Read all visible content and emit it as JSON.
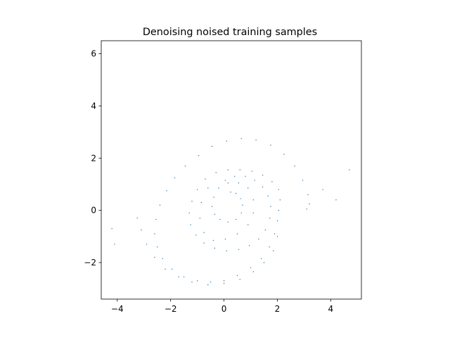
{
  "chart_data": {
    "type": "scatter",
    "title": "Denoising noised training samples",
    "xlabel": "",
    "ylabel": "",
    "xlim": [
      -4.6,
      5.15
    ],
    "ylim": [
      -3.4,
      6.5
    ],
    "x_ticks": [
      -4,
      -2,
      0,
      2,
      4
    ],
    "y_ticks": [
      -2,
      0,
      2,
      4,
      6
    ],
    "x_tick_labels": [
      "−4",
      "−2",
      "0",
      "2",
      "4"
    ],
    "y_tick_labels": [
      "−2",
      "0",
      "2",
      "4",
      "6"
    ],
    "grid": false,
    "marker_color": "#1f77b4",
    "series": [
      {
        "points": [
          [
            0.25,
            0.7
          ],
          [
            0.45,
            0.65
          ],
          [
            0.62,
            0.45
          ],
          [
            0.7,
            0.2
          ],
          [
            0.65,
            -0.1
          ],
          [
            0.45,
            -0.35
          ],
          [
            0.15,
            -0.45
          ],
          [
            -0.15,
            -0.35
          ],
          [
            -0.35,
            -0.15
          ],
          [
            -0.45,
            0.15
          ],
          [
            -0.38,
            0.5
          ],
          [
            -0.2,
            0.85
          ],
          [
            0.05,
            1.15
          ],
          [
            0.4,
            1.3
          ],
          [
            0.8,
            1.3
          ],
          [
            1.15,
            1.15
          ],
          [
            1.45,
            0.9
          ],
          [
            1.65,
            0.55
          ],
          [
            1.75,
            0.15
          ],
          [
            1.72,
            -0.3
          ],
          [
            1.55,
            -0.75
          ],
          [
            1.3,
            -1.1
          ],
          [
            0.95,
            -1.35
          ],
          [
            0.55,
            -1.5
          ],
          [
            0.1,
            -1.55
          ],
          [
            -0.35,
            -1.45
          ],
          [
            -0.75,
            -1.25
          ],
          [
            -1.05,
            -0.95
          ],
          [
            -1.25,
            -0.55
          ],
          [
            -1.3,
            -0.1
          ],
          [
            -1.2,
            0.35
          ],
          [
            -1.0,
            0.8
          ],
          [
            -0.7,
            1.2
          ],
          [
            -0.3,
            1.45
          ],
          [
            0.15,
            1.55
          ],
          [
            0.6,
            1.55
          ],
          [
            1.05,
            1.5
          ],
          [
            1.45,
            1.35
          ],
          [
            1.8,
            1.1
          ],
          [
            2.05,
            0.8
          ],
          [
            2.1,
            0.4
          ],
          [
            2.05,
            0.0
          ],
          [
            2.0,
            -0.4
          ],
          [
            1.9,
            -0.9
          ],
          [
            1.7,
            -1.4
          ],
          [
            1.4,
            -1.85
          ],
          [
            1.0,
            -2.2
          ],
          [
            0.5,
            -2.5
          ],
          [
            0.0,
            -2.7
          ],
          [
            -0.5,
            -2.75
          ],
          [
            -1.0,
            -2.7
          ],
          [
            -1.5,
            -2.55
          ],
          [
            -1.95,
            -2.25
          ],
          [
            -2.3,
            -1.85
          ],
          [
            -2.5,
            -1.4
          ],
          [
            -2.6,
            -0.9
          ],
          [
            -2.55,
            -0.35
          ],
          [
            -2.4,
            0.2
          ],
          [
            -2.15,
            0.75
          ],
          [
            -1.85,
            1.25
          ],
          [
            -1.45,
            1.7
          ],
          [
            -0.95,
            2.1
          ],
          [
            -0.45,
            2.45
          ],
          [
            0.1,
            2.65
          ],
          [
            0.65,
            2.75
          ],
          [
            1.2,
            2.7
          ],
          [
            1.75,
            2.5
          ],
          [
            2.25,
            2.15
          ],
          [
            2.65,
            1.7
          ],
          [
            2.95,
            1.15
          ],
          [
            3.15,
            0.6
          ],
          [
            3.2,
            0.25
          ],
          [
            3.1,
            0.05
          ],
          [
            -3.25,
            -0.3
          ],
          [
            -3.1,
            -0.75
          ],
          [
            -2.9,
            -1.3
          ],
          [
            -2.6,
            -1.8
          ],
          [
            -2.2,
            -2.25
          ],
          [
            -1.7,
            -2.55
          ],
          [
            -1.2,
            -2.75
          ],
          [
            -0.6,
            -2.85
          ],
          [
            0.0,
            -2.8
          ],
          [
            0.6,
            -2.65
          ],
          [
            1.1,
            -2.35
          ],
          [
            1.5,
            -2.0
          ],
          [
            1.85,
            -1.55
          ],
          [
            2.0,
            -1.0
          ],
          [
            -0.6,
            0.85
          ],
          [
            -0.85,
            0.3
          ],
          [
            -0.9,
            -0.3
          ],
          [
            -0.75,
            -0.85
          ],
          [
            -0.4,
            -1.15
          ],
          [
            0.05,
            -1.1
          ],
          [
            0.5,
            -0.9
          ],
          [
            0.9,
            -0.55
          ],
          [
            1.1,
            -0.1
          ],
          [
            1.1,
            0.4
          ],
          [
            0.9,
            0.85
          ],
          [
            0.55,
            1.05
          ],
          [
            0.15,
            1.05
          ]
        ]
      }
    ],
    "outliers": [
      [
        4.7,
        1.55
      ],
      [
        4.2,
        0.4
      ],
      [
        -4.2,
        -0.7
      ],
      [
        -4.1,
        -1.3
      ],
      [
        3.7,
        0.8
      ]
    ]
  }
}
